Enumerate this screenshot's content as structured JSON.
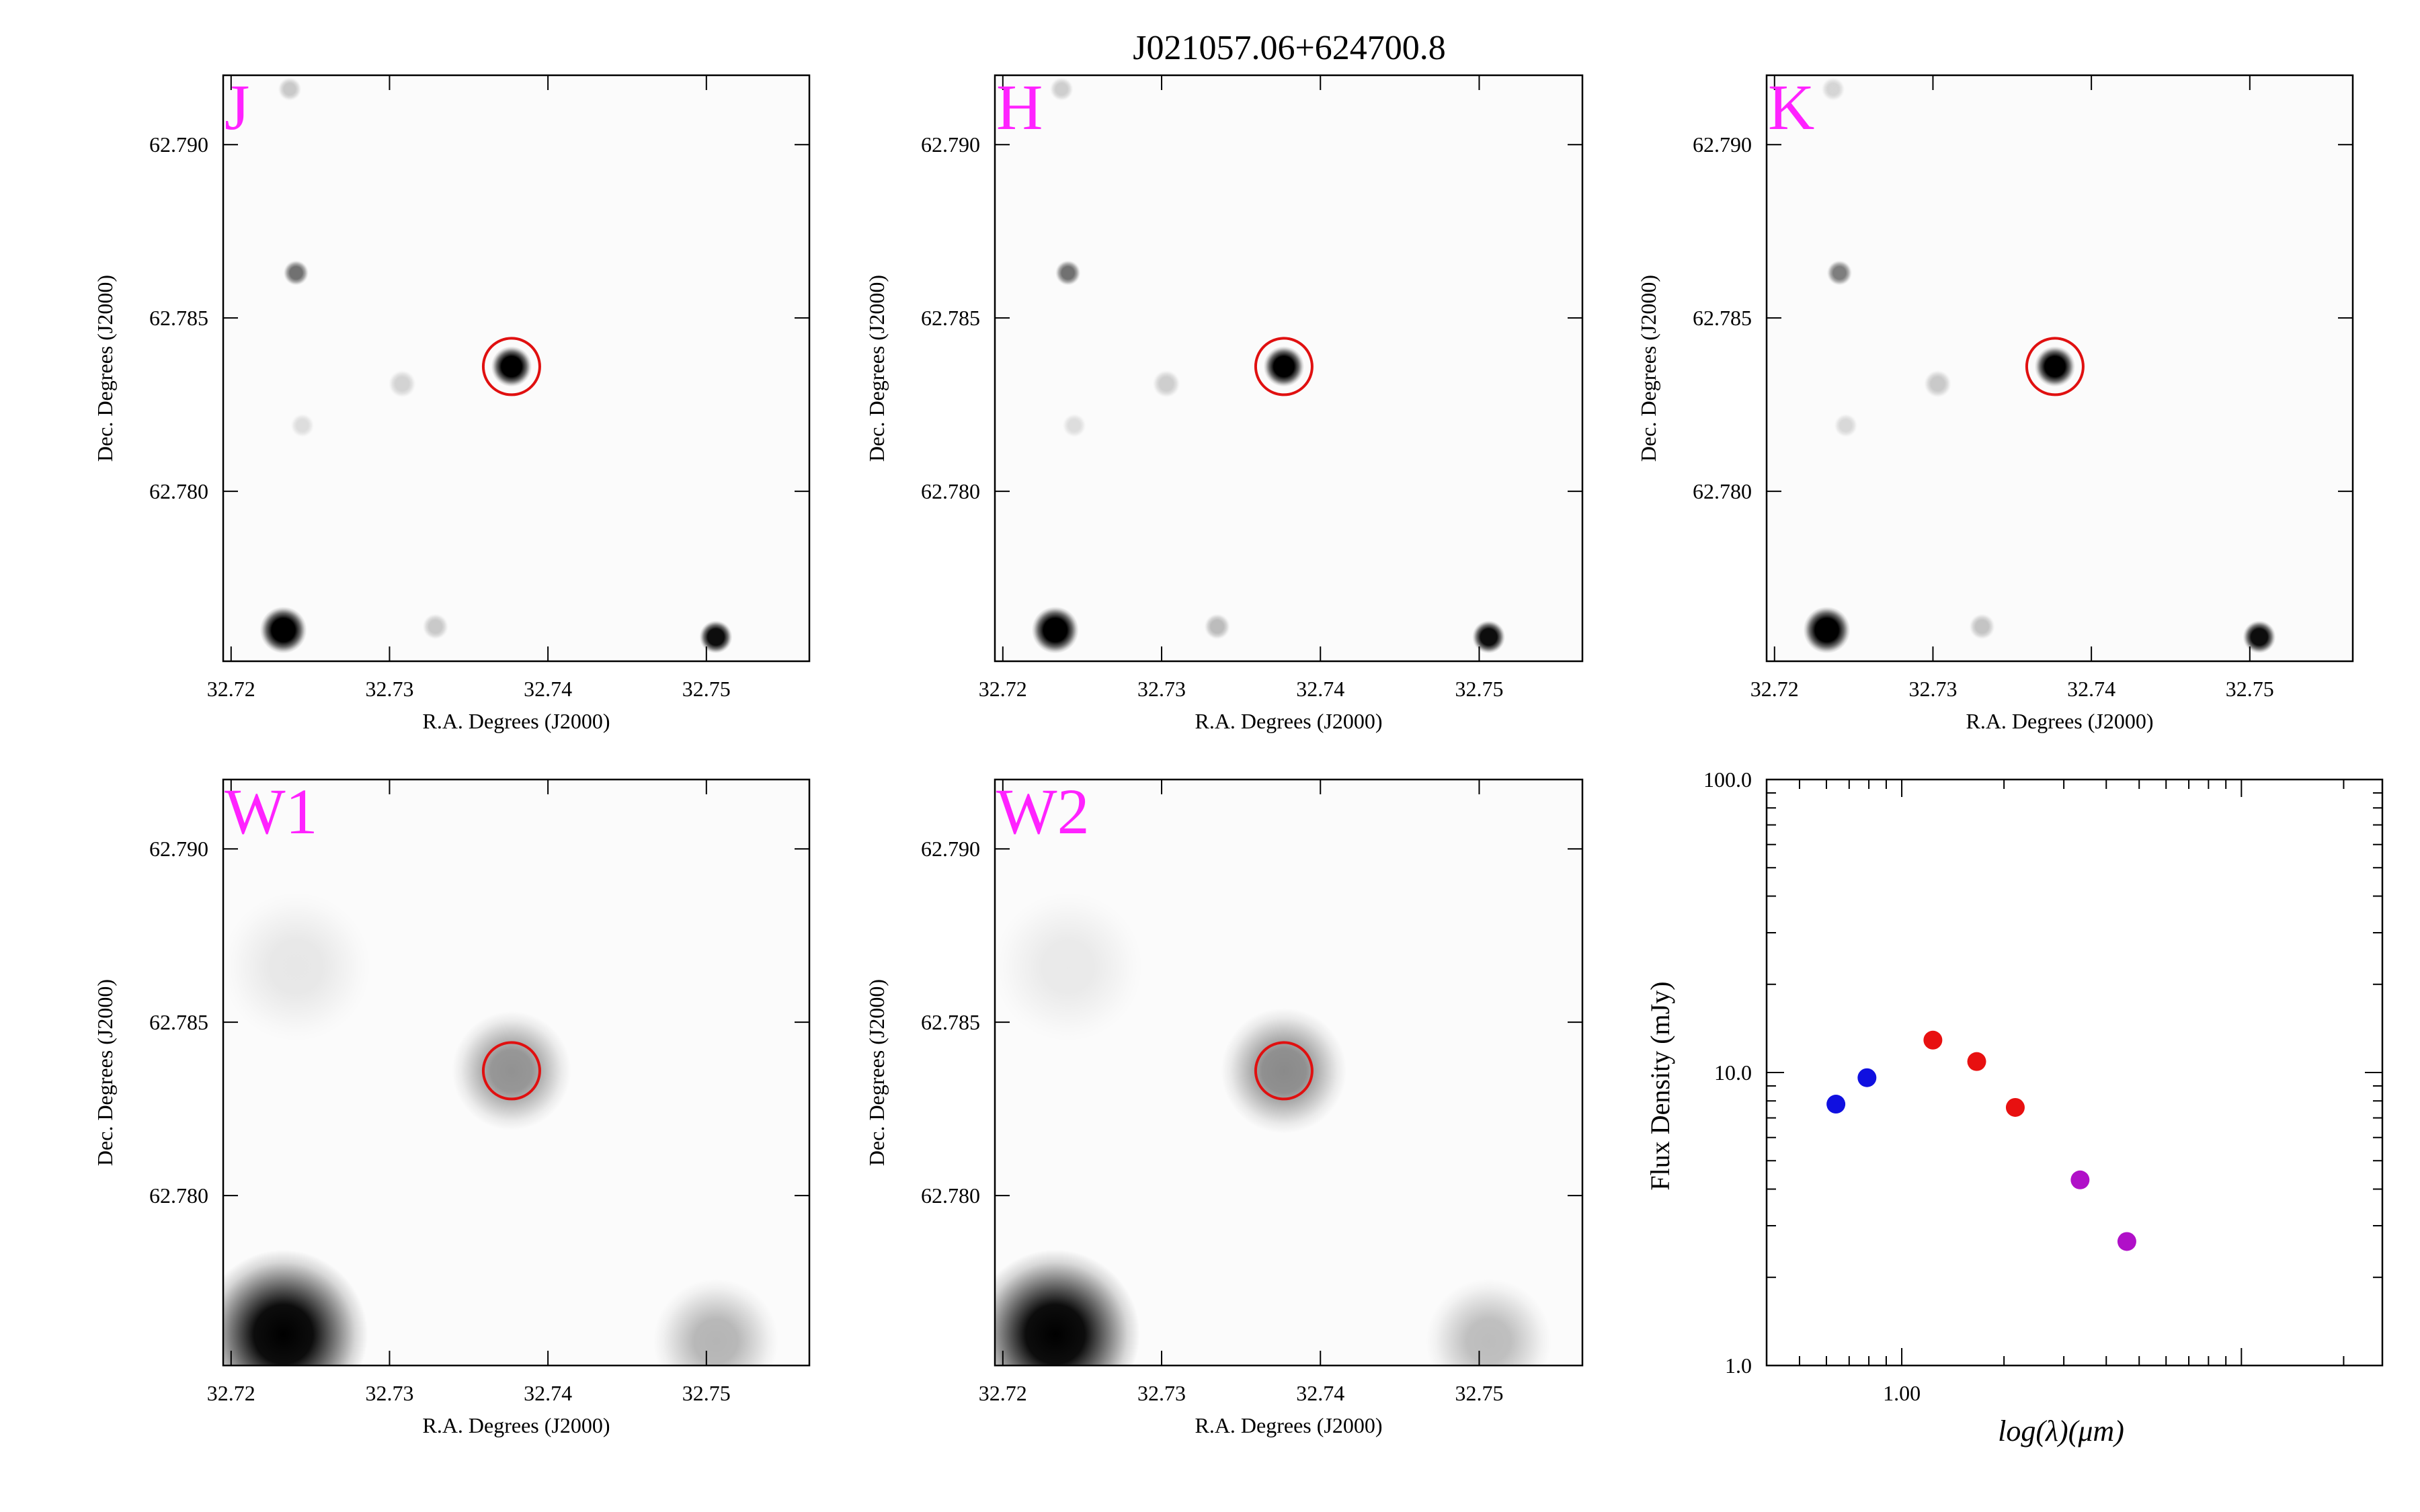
{
  "figure": {
    "title": "J021057.06+624700.8"
  },
  "image_axes": {
    "xlabel": "R.A. Degrees (J2000)",
    "ylabel": "Dec. Degrees (J2000)",
    "xlim": [
      32.7195,
      32.7565
    ],
    "ylim": [
      62.7751,
      62.792
    ],
    "xticks": [
      "32.72",
      "32.73",
      "32.74",
      "32.75"
    ],
    "xtick_values": [
      32.72,
      32.73,
      32.74,
      32.75
    ],
    "yticks": [
      "62.780",
      "62.785",
      "62.790"
    ],
    "ytick_values": [
      62.78,
      62.785,
      62.79
    ]
  },
  "label_color": "#ff22ff",
  "circle_color": "#e01010",
  "target": {
    "ra": 32.7377,
    "dec": 62.7836
  },
  "panels": [
    {
      "band": "J",
      "sources": [
        {
          "ra": 32.7233,
          "dec": 62.776,
          "strength": 1.0,
          "size": 0.6
        },
        {
          "ra": 32.7506,
          "dec": 62.7758,
          "strength": 0.95,
          "size": 0.42
        },
        {
          "ra": 32.7377,
          "dec": 62.7836,
          "strength": 1.0,
          "size": 0.52
        },
        {
          "ra": 32.7241,
          "dec": 62.7863,
          "strength": 0.55,
          "size": 0.32
        },
        {
          "ra": 32.7237,
          "dec": 62.7916,
          "strength": 0.2,
          "size": 0.3
        },
        {
          "ra": 32.7308,
          "dec": 62.7831,
          "strength": 0.16,
          "size": 0.35
        },
        {
          "ra": 32.7329,
          "dec": 62.7761,
          "strength": 0.2,
          "size": 0.33
        },
        {
          "ra": 32.7245,
          "dec": 62.7819,
          "strength": 0.12,
          "size": 0.3
        }
      ]
    },
    {
      "band": "H",
      "sources": [
        {
          "ra": 32.7233,
          "dec": 62.776,
          "strength": 1.0,
          "size": 0.6
        },
        {
          "ra": 32.7506,
          "dec": 62.7758,
          "strength": 0.95,
          "size": 0.42
        },
        {
          "ra": 32.7377,
          "dec": 62.7836,
          "strength": 1.0,
          "size": 0.52
        },
        {
          "ra": 32.7241,
          "dec": 62.7863,
          "strength": 0.55,
          "size": 0.32
        },
        {
          "ra": 32.7237,
          "dec": 62.7916,
          "strength": 0.18,
          "size": 0.3
        },
        {
          "ra": 32.7303,
          "dec": 62.7831,
          "strength": 0.18,
          "size": 0.35
        },
        {
          "ra": 32.7335,
          "dec": 62.7761,
          "strength": 0.25,
          "size": 0.33
        },
        {
          "ra": 32.7245,
          "dec": 62.7819,
          "strength": 0.12,
          "size": 0.3
        }
      ]
    },
    {
      "band": "K",
      "sources": [
        {
          "ra": 32.7233,
          "dec": 62.776,
          "strength": 1.0,
          "size": 0.6
        },
        {
          "ra": 32.7506,
          "dec": 62.7758,
          "strength": 0.95,
          "size": 0.42
        },
        {
          "ra": 32.7377,
          "dec": 62.7836,
          "strength": 1.0,
          "size": 0.52
        },
        {
          "ra": 32.7241,
          "dec": 62.7863,
          "strength": 0.5,
          "size": 0.32
        },
        {
          "ra": 32.7237,
          "dec": 62.7916,
          "strength": 0.15,
          "size": 0.3
        },
        {
          "ra": 32.7303,
          "dec": 62.7831,
          "strength": 0.2,
          "size": 0.35
        },
        {
          "ra": 32.7331,
          "dec": 62.7761,
          "strength": 0.22,
          "size": 0.33
        },
        {
          "ra": 32.7245,
          "dec": 62.7819,
          "strength": 0.14,
          "size": 0.3
        }
      ]
    },
    {
      "band": "W1",
      "sources": [
        {
          "ra": 32.7233,
          "dec": 62.776,
          "strength": 1.0,
          "size": 1.35
        },
        {
          "ra": 32.7506,
          "dec": 62.7758,
          "strength": 0.28,
          "size": 1.0
        },
        {
          "ra": 32.7377,
          "dec": 62.7836,
          "strength": 0.42,
          "size": 0.95
        },
        {
          "ra": 32.7241,
          "dec": 62.7866,
          "strength": 0.08,
          "size": 1.2
        }
      ]
    },
    {
      "band": "W2",
      "sources": [
        {
          "ra": 32.7233,
          "dec": 62.776,
          "strength": 1.0,
          "size": 1.35
        },
        {
          "ra": 32.7506,
          "dec": 62.7758,
          "strength": 0.25,
          "size": 1.0
        },
        {
          "ra": 32.7377,
          "dec": 62.7836,
          "strength": 0.45,
          "size": 1.0
        },
        {
          "ra": 32.7241,
          "dec": 62.7866,
          "strength": 0.07,
          "size": 1.2
        }
      ]
    }
  ],
  "chart_data": {
    "type": "scatter",
    "xlabel": "log(λ)(μm)",
    "ylabel": "Flux Density (mJy)",
    "xscale": "log",
    "yscale": "log",
    "xlim": [
      0.4,
      26.0
    ],
    "ylim": [
      1.0,
      100.0
    ],
    "xtick_labels": [
      {
        "value": 1.0,
        "label": "1.00"
      }
    ],
    "ytick_labels": [
      {
        "value": 1.0,
        "label": "1.0"
      },
      {
        "value": 10.0,
        "label": "10.0"
      },
      {
        "value": 100.0,
        "label": "100.0"
      }
    ],
    "grid": false,
    "series": [
      {
        "color": "#1010e0",
        "x": [
          0.64,
          0.79
        ],
        "y": [
          7.8,
          9.6
        ]
      },
      {
        "color": "#e81010",
        "x": [
          1.235,
          1.662,
          2.159
        ],
        "y": [
          12.9,
          10.9,
          7.6
        ]
      },
      {
        "color": "#b010c8",
        "x": [
          3.35,
          4.6
        ],
        "y": [
          4.3,
          2.65
        ]
      }
    ]
  }
}
